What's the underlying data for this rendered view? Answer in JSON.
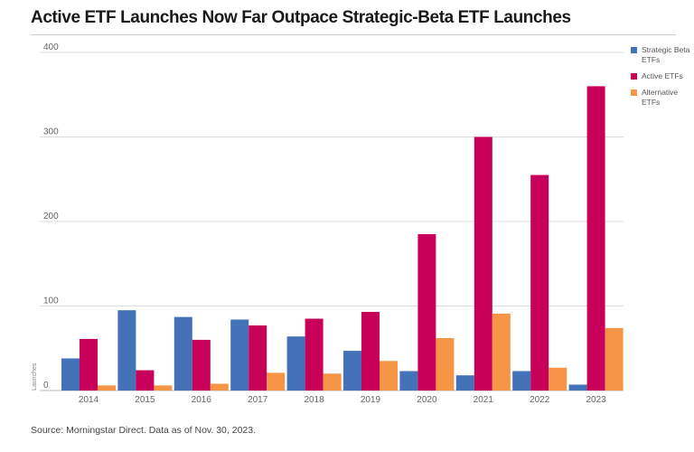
{
  "header": {
    "title": "Active ETF Launches Now Far Outpace Strategic-Beta ETF Launches"
  },
  "footer": {
    "source": "Source: Morningstar Direct. Data as of Nov. 30, 2023."
  },
  "chart_data": {
    "type": "bar",
    "title": "Active ETF Launches Now Far Outpace Strategic-Beta ETF Launches",
    "xlabel": "",
    "ylabel": "Launches",
    "ylim": [
      0,
      400
    ],
    "yticks": [
      0,
      100,
      200,
      300,
      400
    ],
    "grid": true,
    "legend_position": "right",
    "categories": [
      "2014",
      "2015",
      "2016",
      "2017",
      "2018",
      "2019",
      "2020",
      "2021",
      "2022",
      "2023"
    ],
    "series": [
      {
        "name": "Strategic Beta ETFs",
        "color": "#4472b8",
        "values": [
          38,
          95,
          87,
          84,
          64,
          47,
          23,
          18,
          23,
          7
        ]
      },
      {
        "name": "Active ETFs",
        "color": "#c8005a",
        "values": [
          61,
          24,
          60,
          77,
          85,
          93,
          185,
          300,
          255,
          360
        ]
      },
      {
        "name": "Alternative ETFs",
        "color": "#f79546",
        "values": [
          6,
          6,
          8,
          21,
          20,
          35,
          62,
          91,
          27,
          74
        ]
      }
    ]
  }
}
